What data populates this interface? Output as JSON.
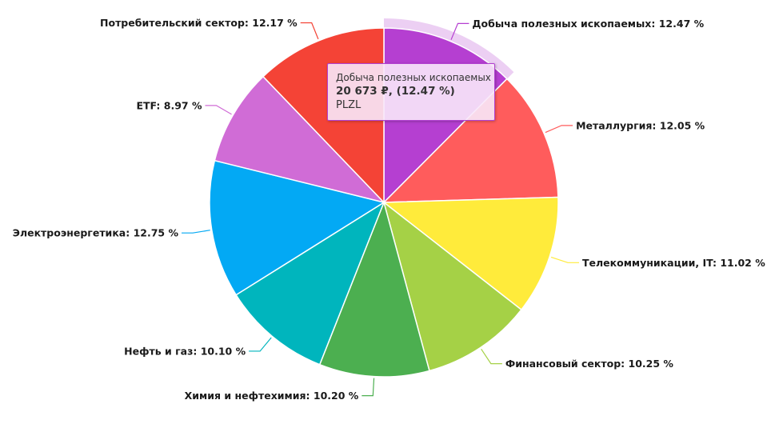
{
  "chart_data": {
    "type": "pie",
    "title": "",
    "slices": [
      {
        "label": "Добыча полезных ископаемых: 12.47 %",
        "value": 12.47,
        "color": "#b53fd1",
        "highlighted": true
      },
      {
        "label": "Металлургия: 12.05 %",
        "value": 12.05,
        "color": "#ff5c5c"
      },
      {
        "label": "Телекоммуникации, IT: 11.02 %",
        "value": 11.02,
        "color": "#ffeb3b"
      },
      {
        "label": "Финансовый сектор: 10.25 %",
        "value": 10.25,
        "color": "#a5d146"
      },
      {
        "label": "Химия и нефтехимия: 10.20 %",
        "value": 10.2,
        "color": "#4caf50"
      },
      {
        "label": "Нефть и газ: 10.10 %",
        "value": 10.1,
        "color": "#00b5bd"
      },
      {
        "label": "Электроэнергетика: 12.75 %",
        "value": 12.75,
        "color": "#03a9f4"
      },
      {
        "label": "ETF: 8.97 %",
        "value": 8.97,
        "color": "#d06cd6"
      },
      {
        "label": "Потребительский сектор: 12.17 %",
        "value": 12.17,
        "color": "#f44336"
      }
    ]
  },
  "tooltip": {
    "name": "Добыча полезных ископаемых",
    "value": "20 673 ₽, (12.47 %)",
    "ticker": "PLZL"
  }
}
